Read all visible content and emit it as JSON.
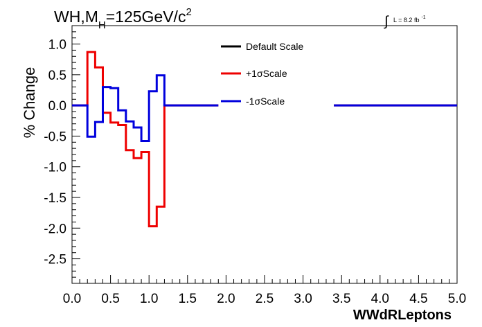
{
  "chart_data": {
    "type": "line",
    "title_main": "WH,M",
    "title_sub": "H",
    "title_rest": "=125GeV/c",
    "title_sup": "2",
    "lumi_integral": "∫",
    "lumi_text": "L = 8.2 fb",
    "lumi_sup": "-1",
    "xlabel": "WWdRLeptons",
    "ylabel": "% Change",
    "xlim": [
      0.0,
      5.0
    ],
    "ylim": [
      -2.9,
      1.3
    ],
    "x_ticks": [
      "0.0",
      "0.5",
      "1.0",
      "1.5",
      "2.0",
      "2.5",
      "3.0",
      "3.5",
      "4.0",
      "4.5",
      "5.0"
    ],
    "y_ticks": [
      "1.0",
      "0.5",
      "0.0",
      "-0.5",
      "-1.0",
      "-1.5",
      "-2.0",
      "-2.5"
    ],
    "grid": false,
    "legend_position": "top-center",
    "bin_width": 0.1,
    "series": [
      {
        "name": "Default Scale",
        "color": "#000000",
        "values": []
      },
      {
        "name": "+1σScale",
        "color": "#ee0000",
        "bins": [
          {
            "x0": 0.0,
            "x1": 0.2,
            "y": 0.0
          },
          {
            "x0": 0.2,
            "x1": 0.3,
            "y": 0.87
          },
          {
            "x0": 0.3,
            "x1": 0.4,
            "y": 0.62
          },
          {
            "x0": 0.4,
            "x1": 0.5,
            "y": -0.12
          },
          {
            "x0": 0.5,
            "x1": 0.6,
            "y": -0.28
          },
          {
            "x0": 0.6,
            "x1": 0.7,
            "y": -0.32
          },
          {
            "x0": 0.7,
            "x1": 0.8,
            "y": -0.73
          },
          {
            "x0": 0.8,
            "x1": 0.9,
            "y": -0.86
          },
          {
            "x0": 0.9,
            "x1": 1.0,
            "y": -0.76
          },
          {
            "x0": 1.0,
            "x1": 1.1,
            "y": -1.97
          },
          {
            "x0": 1.1,
            "x1": 1.2,
            "y": -1.65
          },
          {
            "x0": 1.2,
            "x1": 1.9,
            "y": 0.0
          },
          {
            "x0": 3.4,
            "x1": 5.0,
            "y": 0.0
          }
        ]
      },
      {
        "name": "-1σScale",
        "color": "#0000dd",
        "bins": [
          {
            "x0": 0.0,
            "x1": 0.2,
            "y": 0.0
          },
          {
            "x0": 0.2,
            "x1": 0.3,
            "y": -0.51
          },
          {
            "x0": 0.3,
            "x1": 0.4,
            "y": -0.27
          },
          {
            "x0": 0.4,
            "x1": 0.5,
            "y": 0.3
          },
          {
            "x0": 0.5,
            "x1": 0.6,
            "y": 0.28
          },
          {
            "x0": 0.6,
            "x1": 0.7,
            "y": -0.08
          },
          {
            "x0": 0.7,
            "x1": 0.8,
            "y": -0.26
          },
          {
            "x0": 0.8,
            "x1": 0.9,
            "y": -0.36
          },
          {
            "x0": 0.9,
            "x1": 1.0,
            "y": -0.58
          },
          {
            "x0": 1.0,
            "x1": 1.1,
            "y": 0.23
          },
          {
            "x0": 1.1,
            "x1": 1.2,
            "y": 0.49
          },
          {
            "x0": 1.2,
            "x1": 1.9,
            "y": 0.0
          },
          {
            "x0": 3.4,
            "x1": 5.0,
            "y": 0.0
          }
        ]
      }
    ]
  }
}
